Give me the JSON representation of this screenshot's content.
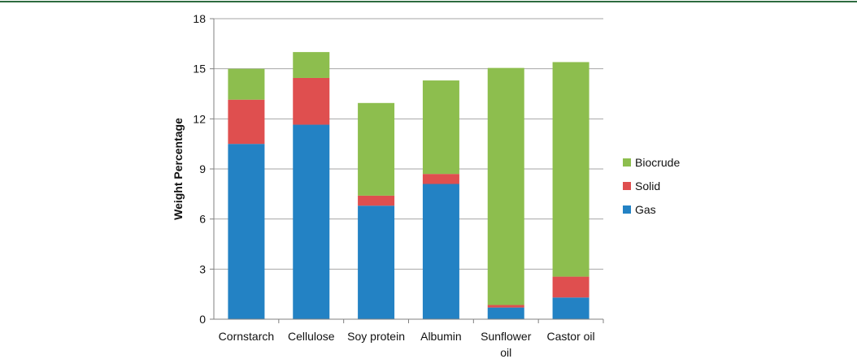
{
  "colors": {
    "top_rule": "#2e6b3f",
    "gridline": "#a6a6a6",
    "axis": "#808080"
  },
  "chart_data": {
    "type": "bar",
    "stacked": true,
    "title": "",
    "xlabel": "",
    "ylabel": "Weight Percentage",
    "ylim": [
      0,
      18
    ],
    "yticks": [
      0,
      3,
      6,
      9,
      12,
      15,
      18
    ],
    "grid": true,
    "legend_position": "right",
    "categories": [
      [
        "Cornstarch"
      ],
      [
        "Cellulose"
      ],
      [
        "Soy protein"
      ],
      [
        "Albumin"
      ],
      [
        "Sunflower",
        "oil"
      ],
      [
        "Castor oil"
      ]
    ],
    "series": [
      {
        "name": "Gas",
        "color": "#2382c4",
        "values": [
          10.5,
          11.65,
          6.8,
          8.1,
          0.7,
          1.3
        ]
      },
      {
        "name": "Solid",
        "color": "#df4f4f",
        "values": [
          2.65,
          2.8,
          0.6,
          0.6,
          0.15,
          1.25
        ]
      },
      {
        "name": "Biocrude",
        "color": "#8dbe4e",
        "values": [
          1.85,
          1.55,
          5.55,
          5.6,
          14.2,
          12.85
        ]
      }
    ],
    "legend_order": [
      "Biocrude",
      "Solid",
      "Gas"
    ]
  }
}
